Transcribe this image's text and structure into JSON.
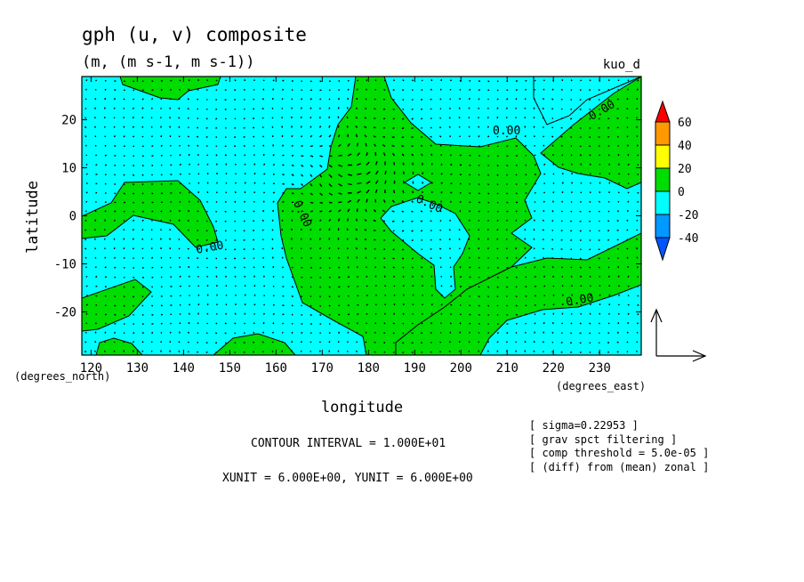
{
  "chart_data": {
    "type": "contour+vector",
    "title": "gph (u, v) composite",
    "subtitle": "(m, (m s-1, m s-1))",
    "corner_label": "kuo_d",
    "xlabel": "longitude",
    "ylabel": "latitude",
    "x_unit_label": "(degrees_east)",
    "y_unit_label": "(degrees_north)",
    "xlim": [
      118,
      239
    ],
    "ylim": [
      -29,
      29
    ],
    "x_ticks": [
      120,
      130,
      140,
      150,
      160,
      170,
      180,
      190,
      200,
      210,
      220,
      230
    ],
    "y_ticks": [
      20,
      10,
      0,
      -10,
      -20
    ],
    "contour_labels": [
      "0.00",
      "0.00",
      "0.00",
      "0.00",
      "0.00",
      "0.00"
    ],
    "colorbar": {
      "levels": [
        "60",
        "40",
        "20",
        "0",
        "-20",
        "-40"
      ],
      "colors": [
        "#ff0000",
        "#ff9900",
        "#ffff00",
        "#00dd00",
        "#00ffff",
        "#0099ff",
        "#0055ff"
      ]
    },
    "fill_colors": {
      "positive": "#00dd00",
      "negative": "#00ffff"
    },
    "notes": {
      "contour_interval": "CONTOUR INTERVAL = 1.000E+01",
      "units": "XUNIT = 6.000E+00, YUNIT = 6.000E+00",
      "meta": [
        "[ sigma=0.22953 ]",
        "[ grav spct filtering ]",
        "[ comp threshold = 5.0e-05 ]",
        "[ (diff) from (mean) zonal ]"
      ]
    }
  }
}
